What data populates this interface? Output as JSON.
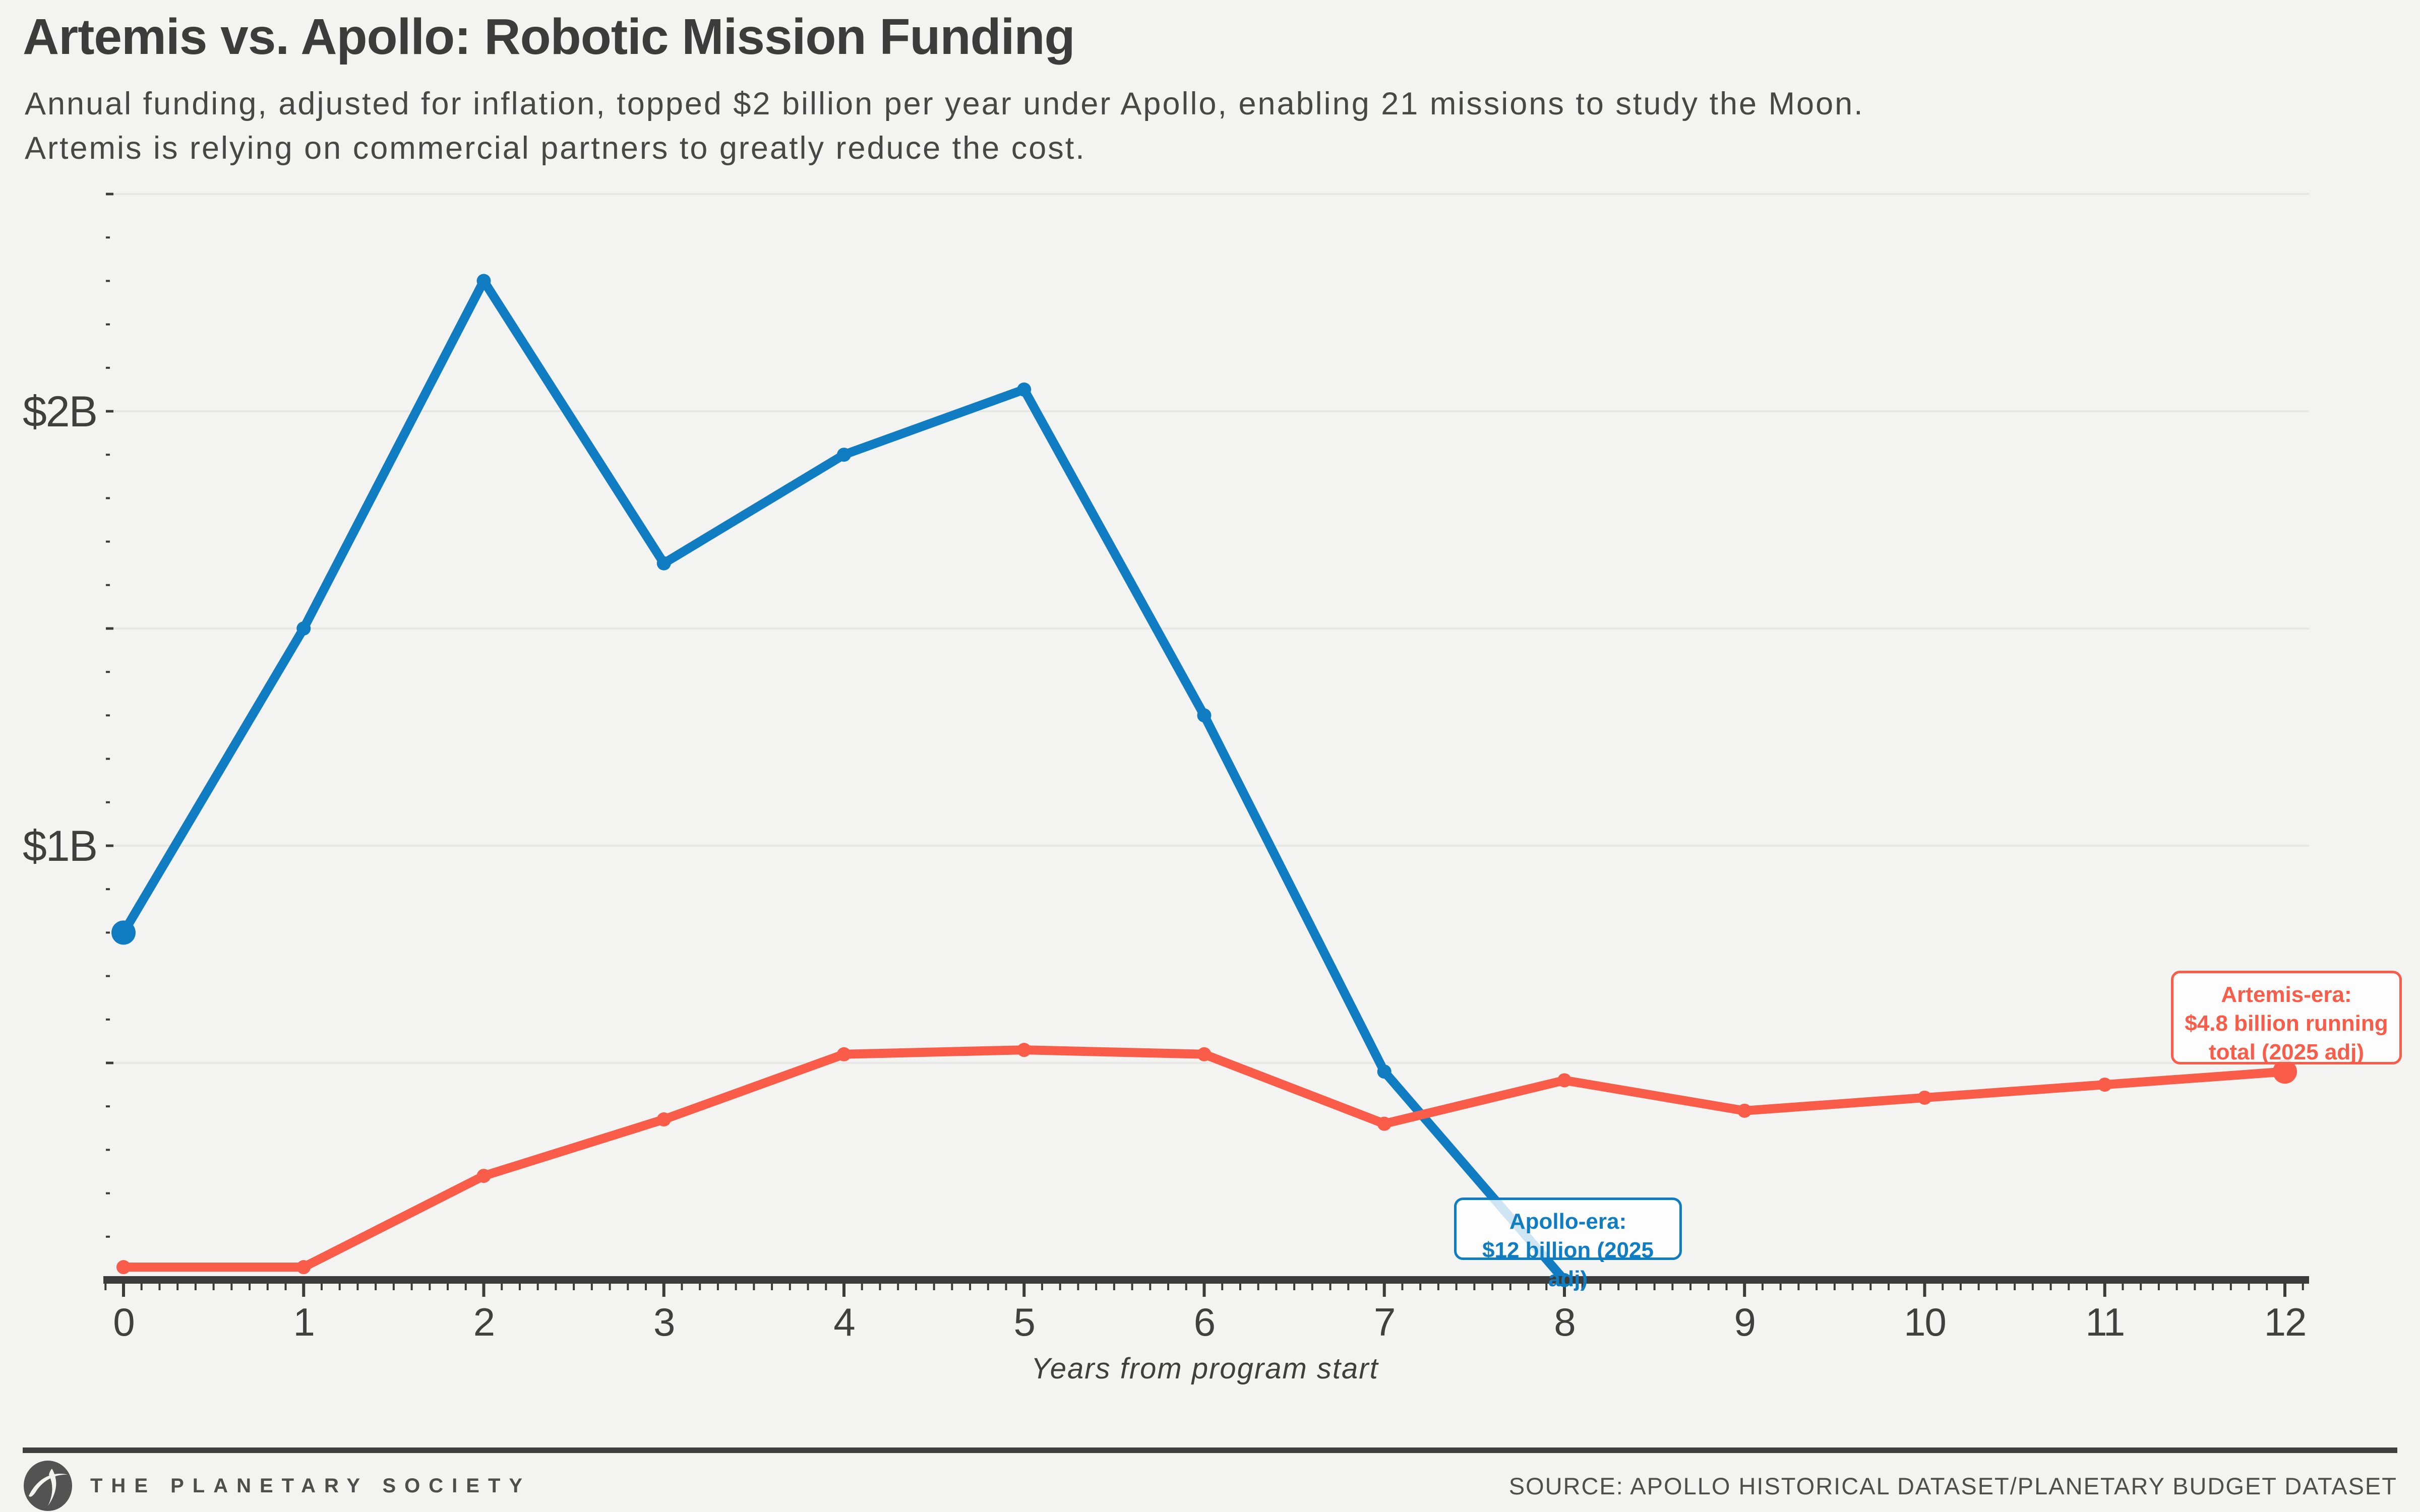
{
  "header": {
    "title": "Artemis vs. Apollo: Robotic Mission Funding",
    "subtitle_line1": "Annual funding, adjusted for inflation, topped $2 billion per year under Apollo, enabling 21 missions to study the Moon.",
    "subtitle_line2": "Artemis is relying on commercial partners to greatly reduce the cost."
  },
  "annotations": {
    "apollo": {
      "line1": "Apollo-era:",
      "line2": "$12 billion (2025 adj)"
    },
    "artemis": {
      "line1": "Artemis-era:",
      "line2": "$4.8 billion running",
      "line3": "total (2025 adj)"
    }
  },
  "footer": {
    "brand": "THE PLANETARY SOCIETY",
    "source": "SOURCE: APOLLO HISTORICAL DATASET/PLANETARY BUDGET DATASET"
  },
  "colors": {
    "apollo_blue": "#107dc2",
    "artemis_red": "#f95c49",
    "ink": "#3c3c3c",
    "background": "#f3f3f2",
    "gridline": "#e7e7e6",
    "axis": "#3b3b3b",
    "annotation_bg": "rgba(255,255,255,0.8)"
  },
  "chart_data": {
    "type": "line",
    "x": [
      0,
      1,
      2,
      3,
      4,
      5,
      6,
      7,
      8,
      9,
      10,
      11,
      12
    ],
    "series": [
      {
        "name": "Apollo-era annual robotic mission funding ($B, 2025 adj)",
        "color_key": "apollo_blue",
        "values": [
          0.8,
          1.5,
          2.3,
          1.65,
          1.9,
          2.05,
          1.3,
          0.48,
          0.0
        ],
        "total_label": "$12 billion (2025 adj)",
        "emphasis_marker": "first"
      },
      {
        "name": "Artemis-era annual robotic mission funding ($B, 2025 adj)",
        "color_key": "artemis_red",
        "values": [
          0.03,
          0.03,
          0.24,
          0.37,
          0.52,
          0.53,
          0.52,
          0.36,
          0.46,
          0.39,
          0.42,
          0.45,
          0.48
        ],
        "total_label": "$4.8 billion running total (2025 adj)",
        "emphasis_marker": "last"
      }
    ],
    "xlabel": "Years from program start",
    "x_tick_labels": [
      "0",
      "1",
      "2",
      "3",
      "4",
      "5",
      "6",
      "7",
      "8",
      "9",
      "10",
      "11",
      "12"
    ],
    "y_tick_labels": [
      {
        "value": 1,
        "label": "$1B"
      },
      {
        "value": 2,
        "label": "$2B"
      }
    ],
    "y_major_gridlines": [
      0.5,
      1.0,
      1.5,
      2.0,
      2.5
    ],
    "y_minor_tick_step": 0.1,
    "x_minor_tick_step": 0.1,
    "xlim": [
      0,
      12
    ],
    "ylim": [
      0,
      2.55
    ],
    "grid": "horizontal-only",
    "legend_position": "none"
  }
}
